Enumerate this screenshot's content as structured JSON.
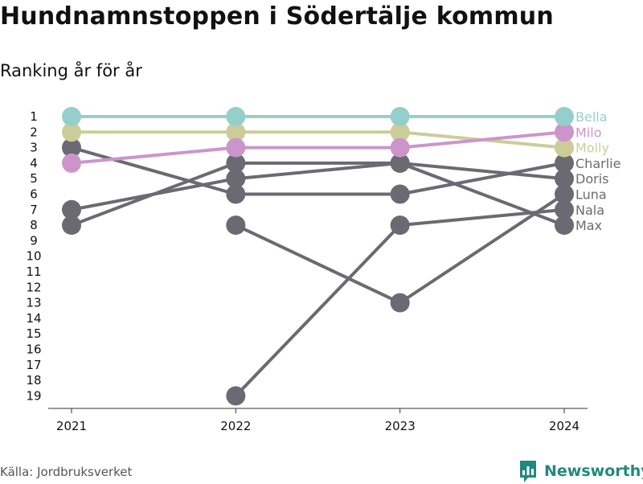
{
  "title": "Hundnamnstoppen i Södertälje kommun",
  "subtitle": "Ranking år för år",
  "source": "Källa: Jordbruksverket",
  "brand": {
    "name": "Newsworthy",
    "icon": "newsworthy-logo-icon"
  },
  "colors": {
    "gray": "#6b6a72",
    "bella": "#95cfcc",
    "milo": "#cb95cc",
    "molly": "#cccc99",
    "brand": "#20897e"
  },
  "chart_data": {
    "type": "line",
    "x": [
      "2021",
      "2022",
      "2023",
      "2024"
    ],
    "y_ticks": [
      1,
      2,
      3,
      4,
      5,
      6,
      7,
      8,
      9,
      10,
      11,
      12,
      13,
      14,
      15,
      16,
      17,
      18,
      19
    ],
    "ylim": [
      19,
      1
    ],
    "y_reversed": true,
    "grid": false,
    "series": [
      {
        "name": "Charlie",
        "values": [
          3,
          6,
          6,
          4
        ],
        "color": "#6b6a72"
      },
      {
        "name": "Doris",
        "values": [
          8,
          4,
          4,
          5
        ],
        "color": "#6b6a72"
      },
      {
        "name": "Luna",
        "values": [
          null,
          8,
          13,
          6
        ],
        "color": "#6b6a72"
      },
      {
        "name": "Nala",
        "values": [
          null,
          19,
          8,
          7
        ],
        "color": "#6b6a72"
      },
      {
        "name": "Max",
        "values": [
          7,
          5,
          4,
          8
        ],
        "color": "#6b6a72"
      },
      {
        "name": "Molly",
        "values": [
          2,
          2,
          2,
          3
        ],
        "color": "#cccc99"
      },
      {
        "name": "Milo",
        "values": [
          4,
          3,
          3,
          2
        ],
        "color": "#cb95cc"
      },
      {
        "name": "Bella",
        "values": [
          1,
          1,
          1,
          1
        ],
        "color": "#95cfcc"
      }
    ]
  }
}
